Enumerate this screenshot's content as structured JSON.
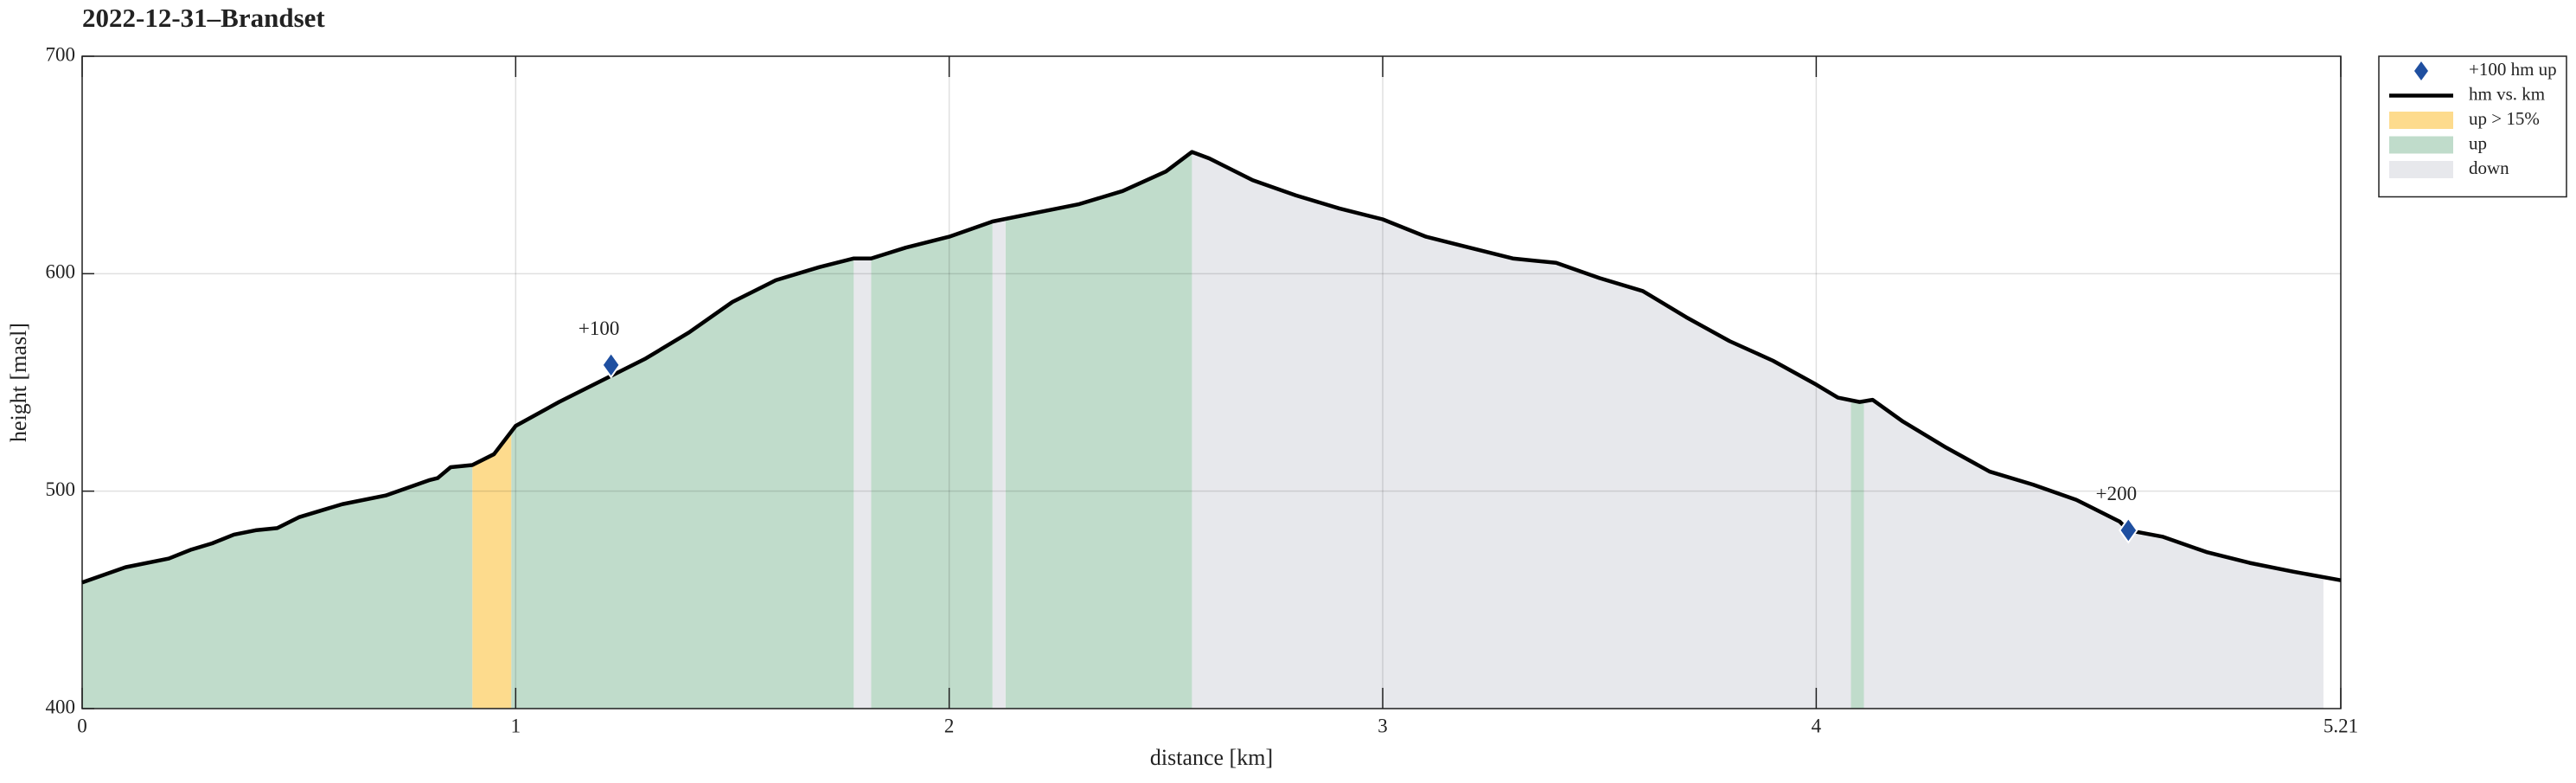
{
  "chart_data": {
    "type": "line",
    "title": "2022-12-31–Brandset",
    "xlabel": "distance [km]",
    "ylabel": "height [masl]",
    "xlim": [
      0,
      5.21
    ],
    "ylim": [
      400,
      700
    ],
    "xticks": [
      0,
      1,
      2,
      3,
      4,
      5.21
    ],
    "yticks": [
      400,
      500,
      600,
      700
    ],
    "grid": true,
    "legend": "northeastoutside",
    "series": [
      {
        "name": "+100 hm up",
        "style": "markers",
        "color": "#1f4fa0",
        "x": [
          1.22,
          4.72
        ],
        "values": [
          558,
          482
        ],
        "value_labels": [
          "+100",
          "+200"
        ]
      },
      {
        "name": "hm vs. km",
        "style": "line",
        "color": "#000000",
        "x": [
          0,
          0.1,
          0.2,
          0.25,
          0.3,
          0.35,
          0.4,
          0.45,
          0.5,
          0.6,
          0.7,
          0.8,
          0.82,
          0.85,
          0.9,
          0.95,
          1.0,
          1.1,
          1.2,
          1.3,
          1.4,
          1.5,
          1.6,
          1.7,
          1.78,
          1.82,
          1.9,
          2.0,
          2.1,
          2.2,
          2.3,
          2.4,
          2.5,
          2.56,
          2.6,
          2.7,
          2.8,
          2.9,
          3.0,
          3.1,
          3.2,
          3.3,
          3.4,
          3.5,
          3.6,
          3.7,
          3.8,
          3.9,
          4.0,
          4.05,
          4.1,
          4.13,
          4.2,
          4.3,
          4.4,
          4.5,
          4.6,
          4.7,
          4.72,
          4.8,
          4.9,
          5.0,
          5.1,
          5.21
        ],
        "values": [
          458,
          465,
          469,
          473,
          476,
          480,
          482,
          483,
          488,
          494,
          498,
          505,
          506,
          511,
          512,
          517,
          530,
          541,
          551,
          561,
          573,
          587,
          597,
          603,
          607,
          607,
          612,
          617,
          624,
          628,
          632,
          638,
          647,
          656,
          653,
          643,
          636,
          630,
          625,
          617,
          612,
          607,
          605,
          598,
          592,
          580,
          569,
          560,
          549,
          543,
          541,
          542,
          532,
          520,
          509,
          503,
          496,
          486,
          482,
          479,
          472,
          467,
          463,
          459
        ]
      },
      {
        "name": "up > 15%",
        "style": "band",
        "color": "#fddb8d",
        "intervals": [
          [
            0.9,
            0.99
          ]
        ]
      },
      {
        "name": "up",
        "style": "band",
        "color": "#c0dccb",
        "intervals": [
          [
            0,
            0.9
          ],
          [
            0.99,
            1.78
          ],
          [
            1.82,
            2.1
          ],
          [
            2.13,
            2.56
          ],
          [
            4.08,
            4.11
          ]
        ]
      },
      {
        "name": "down",
        "style": "band",
        "color": "#e7e8ec",
        "intervals": [
          [
            1.78,
            1.82
          ],
          [
            2.1,
            2.13
          ],
          [
            2.56,
            4.08
          ],
          [
            4.11,
            5.17
          ]
        ]
      }
    ]
  }
}
